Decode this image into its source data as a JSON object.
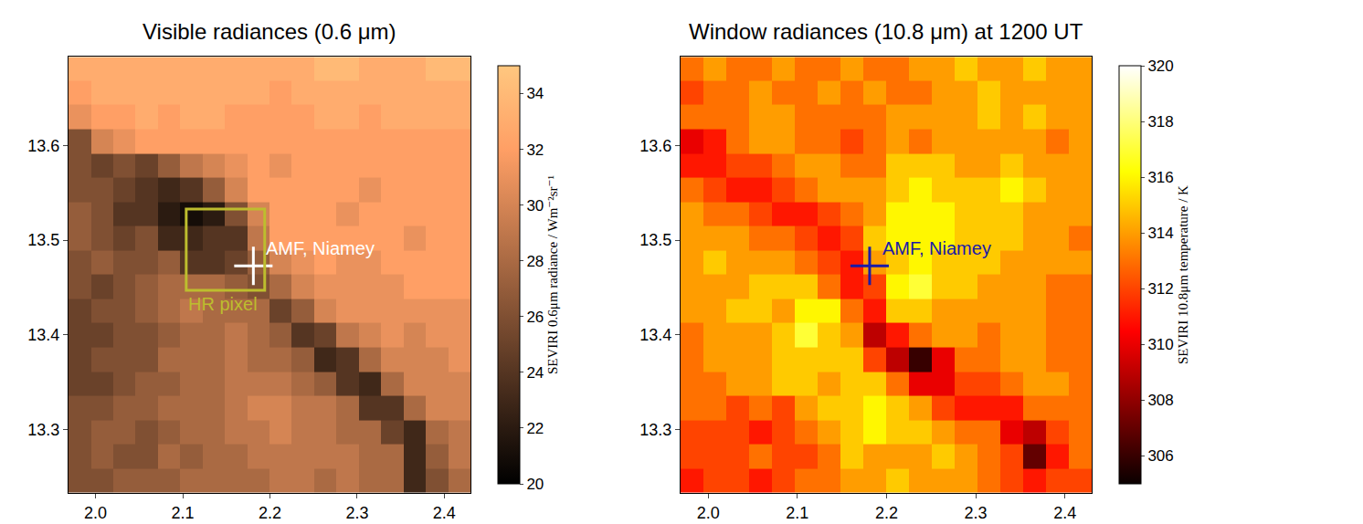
{
  "chart_data": [
    {
      "type": "heatmap",
      "title": "Visible radiances (0.6 μm)",
      "colorbar_label": "SEVIRI 0.6μm radiance / Wm⁻²sr⁻¹",
      "color": "copper",
      "x": [
        1.982,
        2.008,
        2.033,
        2.059,
        2.084,
        2.11,
        2.136,
        2.161,
        2.187,
        2.212,
        2.238,
        2.264,
        2.289,
        2.315,
        2.34,
        2.366,
        2.392,
        2.417
      ],
      "y": [
        13.681,
        13.656,
        13.63,
        13.604,
        13.579,
        13.553,
        13.528,
        13.502,
        13.476,
        13.451,
        13.425,
        13.4,
        13.374,
        13.348,
        13.323,
        13.297,
        13.272,
        13.246
      ],
      "z": [
        [
          33,
          33,
          33,
          33,
          33,
          33,
          33,
          33,
          33,
          33,
          33,
          34,
          34,
          33,
          33,
          33,
          34,
          34
        ],
        [
          32,
          33,
          33,
          33,
          33,
          33,
          33,
          33,
          33,
          32,
          33,
          33,
          33,
          33,
          33,
          33,
          33,
          33
        ],
        [
          31,
          32,
          32,
          33,
          32,
          33,
          33,
          32,
          32,
          32,
          32,
          33,
          33,
          32,
          33,
          33,
          33,
          33
        ],
        [
          26,
          30,
          31,
          32,
          32,
          32,
          32,
          32,
          32,
          32,
          32,
          32,
          32,
          32,
          32,
          32,
          32,
          32
        ],
        [
          26,
          25,
          26,
          25,
          27,
          29,
          30,
          31,
          32,
          31,
          32,
          32,
          32,
          32,
          32,
          32,
          32,
          32
        ],
        [
          26,
          26,
          25,
          24,
          23,
          24,
          27,
          30,
          32,
          32,
          32,
          32,
          32,
          31,
          32,
          32,
          32,
          32
        ],
        [
          27,
          26,
          24,
          24,
          22,
          21,
          22,
          26,
          30,
          32,
          32,
          32,
          31,
          32,
          32,
          32,
          32,
          32
        ],
        [
          27,
          26,
          25,
          26,
          23,
          23,
          24,
          24,
          29,
          32,
          32,
          32,
          32,
          32,
          32,
          31,
          32,
          32
        ],
        [
          26,
          27,
          26,
          26,
          27,
          24,
          24,
          25,
          27,
          30,
          31,
          32,
          31,
          31,
          32,
          32,
          32,
          32
        ],
        [
          26,
          25,
          26,
          27,
          28,
          28,
          28,
          27,
          26,
          28,
          30,
          31,
          31,
          31,
          31,
          32,
          32,
          32
        ],
        [
          25,
          26,
          26,
          27,
          28,
          29,
          28,
          28,
          28,
          25,
          27,
          30,
          31,
          31,
          31,
          31,
          31,
          31
        ],
        [
          25,
          25,
          26,
          26,
          27,
          28,
          28,
          29,
          28,
          27,
          24,
          25,
          29,
          30,
          31,
          30,
          31,
          31
        ],
        [
          25,
          26,
          26,
          26,
          28,
          28,
          28,
          29,
          28,
          28,
          27,
          23,
          24,
          28,
          30,
          30,
          30,
          31
        ],
        [
          25,
          25,
          26,
          27,
          27,
          28,
          28,
          29,
          29,
          29,
          28,
          27,
          24,
          23,
          28,
          30,
          30,
          30
        ],
        [
          26,
          26,
          27,
          27,
          28,
          28,
          28,
          29,
          30,
          30,
          29,
          29,
          28,
          24,
          24,
          28,
          30,
          30
        ],
        [
          26,
          27,
          27,
          26,
          27,
          28,
          28,
          29,
          29,
          30,
          29,
          29,
          28,
          28,
          25,
          23,
          28,
          29
        ],
        [
          26,
          27,
          26,
          26,
          28,
          27,
          28,
          28,
          29,
          29,
          29,
          29,
          29,
          28,
          28,
          23,
          27,
          29
        ],
        [
          26,
          26,
          27,
          27,
          27,
          28,
          28,
          28,
          28,
          29,
          29,
          28,
          29,
          28,
          28,
          23,
          26,
          28
        ]
      ],
      "xlim": [
        1.969,
        2.43
      ],
      "ylim": [
        13.233,
        13.694
      ],
      "xticks": [
        {
          "value": 2,
          "label": "2.0"
        },
        2.1,
        2.2,
        2.3,
        2.4
      ],
      "yticks": [
        13.3,
        13.4,
        13.5,
        13.6
      ],
      "zlim": [
        20,
        35
      ],
      "zticks": [
        20,
        22,
        24,
        26,
        28,
        30,
        32,
        34
      ],
      "annotations": [
        {
          "text": "AMF, Niamey",
          "x": 2.181,
          "y": 13.473,
          "marker": "plus",
          "color": "#ffffff"
        },
        {
          "text": "HR pixel",
          "box": [
            2.104,
            13.447,
            2.194,
            13.533
          ],
          "color": "#bdbd2e"
        }
      ]
    },
    {
      "type": "heatmap",
      "title": "Window radiances (10.8 μm) at 1200 UT",
      "colorbar_label": "SEVIRI 10.8μm temperature / K",
      "color": "hot",
      "x": [
        1.982,
        2.008,
        2.033,
        2.059,
        2.084,
        2.11,
        2.136,
        2.161,
        2.187,
        2.212,
        2.238,
        2.264,
        2.289,
        2.315,
        2.34,
        2.366,
        2.392,
        2.417
      ],
      "y": [
        13.681,
        13.656,
        13.63,
        13.604,
        13.579,
        13.553,
        13.528,
        13.502,
        13.476,
        13.451,
        13.425,
        13.4,
        13.374,
        13.348,
        13.323,
        13.297,
        13.272,
        13.246
      ],
      "z": [
        [
          313,
          314,
          313,
          313,
          314,
          313,
          313,
          314,
          313,
          313,
          314,
          314,
          315,
          314,
          314,
          315,
          314,
          314
        ],
        [
          312,
          313,
          313,
          314,
          313,
          313,
          314,
          313,
          314,
          313,
          313,
          314,
          314,
          315,
          314,
          314,
          314,
          314
        ],
        [
          313,
          313,
          313,
          314,
          314,
          313,
          313,
          313,
          313,
          314,
          314,
          314,
          314,
          315,
          314,
          315,
          314,
          314
        ],
        [
          310,
          311,
          313,
          314,
          314,
          313,
          313,
          312,
          313,
          314,
          313,
          314,
          314,
          314,
          314,
          314,
          313,
          314
        ],
        [
          311,
          311,
          312,
          312,
          313,
          314,
          314,
          313,
          313,
          315,
          315,
          315,
          314,
          314,
          315,
          314,
          314,
          314
        ],
        [
          313,
          312,
          311,
          311,
          312,
          313,
          314,
          314,
          314,
          315,
          316,
          315,
          315,
          315,
          316,
          315,
          314,
          314
        ],
        [
          314,
          313,
          313,
          312,
          311,
          311,
          312,
          313,
          314,
          316,
          316,
          316,
          315,
          315,
          315,
          314,
          314,
          314
        ],
        [
          314,
          314,
          314,
          313,
          313,
          312,
          311,
          312,
          315,
          316,
          316,
          316,
          315,
          315,
          315,
          314,
          314,
          313
        ],
        [
          314,
          315,
          314,
          314,
          314,
          313,
          312,
          311,
          314,
          315,
          316,
          315,
          315,
          315,
          314,
          314,
          314,
          314
        ],
        [
          314,
          314,
          314,
          315,
          315,
          315,
          313,
          311,
          312,
          316,
          317,
          315,
          315,
          314,
          314,
          314,
          313,
          313
        ],
        [
          314,
          314,
          315,
          315,
          314,
          316,
          316,
          313,
          311,
          315,
          315,
          314,
          314,
          314,
          314,
          314,
          313,
          313
        ],
        [
          313,
          314,
          314,
          314,
          315,
          317,
          315,
          314,
          309,
          311,
          313,
          314,
          314,
          313,
          314,
          314,
          313,
          313
        ],
        [
          313,
          314,
          314,
          314,
          315,
          315,
          315,
          315,
          312,
          309,
          306,
          310,
          313,
          313,
          314,
          314,
          313,
          313
        ],
        [
          313,
          313,
          314,
          314,
          315,
          315,
          314,
          315,
          315,
          313,
          310,
          310,
          312,
          312,
          313,
          314,
          314,
          313
        ],
        [
          313,
          313,
          312,
          313,
          312,
          314,
          315,
          315,
          316,
          315,
          314,
          312,
          311,
          311,
          311,
          313,
          313,
          313
        ],
        [
          312,
          312,
          312,
          311,
          312,
          313,
          314,
          315,
          316,
          315,
          315,
          314,
          313,
          313,
          310,
          309,
          312,
          313
        ],
        [
          312,
          312,
          312,
          313,
          312,
          312,
          313,
          315,
          314,
          314,
          314,
          315,
          314,
          313,
          312,
          307,
          311,
          313
        ],
        [
          311,
          312,
          312,
          311,
          312,
          313,
          313,
          314,
          314,
          315,
          314,
          314,
          314,
          313,
          312,
          311,
          312,
          312
        ]
      ],
      "xlim": [
        1.969,
        2.43
      ],
      "ylim": [
        13.233,
        13.694
      ],
      "xticks": [
        {
          "value": 2,
          "label": "2.0"
        },
        2.1,
        2.2,
        2.3,
        2.4
      ],
      "yticks": [
        13.3,
        13.4,
        13.5,
        13.6
      ],
      "zlim": [
        305,
        320
      ],
      "zticks": [
        306,
        308,
        310,
        312,
        314,
        316,
        318,
        320
      ],
      "annotations": [
        {
          "text": "AMF, Niamey",
          "x": 2.181,
          "y": 13.473,
          "marker": "plus",
          "color": "#1a1aa8"
        }
      ]
    }
  ]
}
